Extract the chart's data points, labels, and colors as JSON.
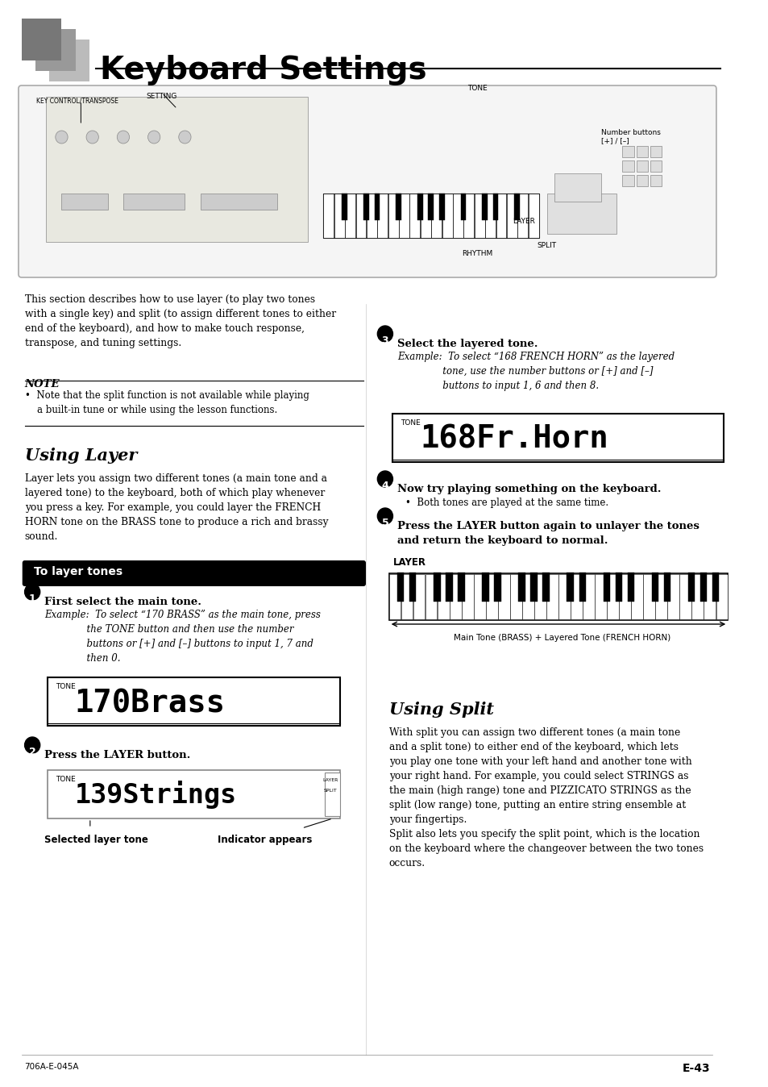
{
  "title": "Keyboard Settings",
  "page_bg": "#ffffff",
  "page_num": "E-43",
  "footer_left": "706A-E-045A",
  "header_logo_colors": [
    "#888888",
    "#aaaaaa",
    "#cccccc"
  ],
  "intro_text": "This section describes how to use layer (to play two tones\nwith a single key) and split (to assign different tones to either\nend of the keyboard), and how to make touch response,\ntranspose, and tuning settings.",
  "note_label": "NOTE",
  "note_text": "•  Note that the split function is not available while playing\n    a built-in tune or while using the lesson functions.",
  "section1_title": "Using Layer",
  "section1_body": "Layer lets you assign two different tones (a main tone and a\nlayered tone) to the keyboard, both of which play whenever\nyou press a key. For example, you could layer the FRENCH\nHORN tone on the BRASS tone to produce a rich and brassy\nsound.",
  "box1_title": "To layer tones",
  "step1_num": "1",
  "step1_title": "First select the main tone.",
  "step1_example": "Example:  To select “170 BRASS” as the main tone, press\n              the TONE button and then use the number\n              buttons or [+] and [–] buttons to input 1, 7 and\n              then 0.",
  "display1_label": "TONE",
  "display1_text": "170Brass",
  "step2_num": "2",
  "step2_title": "Press the LAYER button.",
  "display2_label": "TONE",
  "display2_text": "139Strings",
  "display2_right1": "LAYER",
  "display2_right2": "SPLIT",
  "display2_caption_left": "Selected layer tone",
  "display2_caption_right": "Indicator appears",
  "step3_num": "3",
  "step3_title": "Select the layered tone.",
  "step3_example": "Example:  To select “168 FRENCH HORN” as the layered\n               tone, use the number buttons or [+] and [–]\n               buttons to input 1, 6 and then 8.",
  "display3_label": "TONE",
  "display3_text": "168Fr.Horn",
  "step4_num": "4",
  "step4_title": "Now try playing something on the keyboard.",
  "step4_body": "•  Both tones are played at the same time.",
  "step5_num": "5",
  "step5_title": "Press the LAYER button again to unlayer the tones\nand return the keyboard to normal.",
  "layer_label": "LAYER",
  "keyboard_caption": "Main Tone (BRASS) + Layered Tone (FRENCH HORN)",
  "section2_title": "Using Split",
  "section2_body": "With split you can assign two different tones (a main tone\nand a split tone) to either end of the keyboard, which lets\nyou play one tone with your left hand and another tone with\nyour right hand. For example, you could select STRINGS as\nthe main (high range) tone and PIZZICATO STRINGS as the\nsplit (low range) tone, putting an entire string ensemble at\nyour fingertips.\nSplit also lets you specify the split point, which is the location\non the keyboard where the changeover between the two tones\noccurs."
}
